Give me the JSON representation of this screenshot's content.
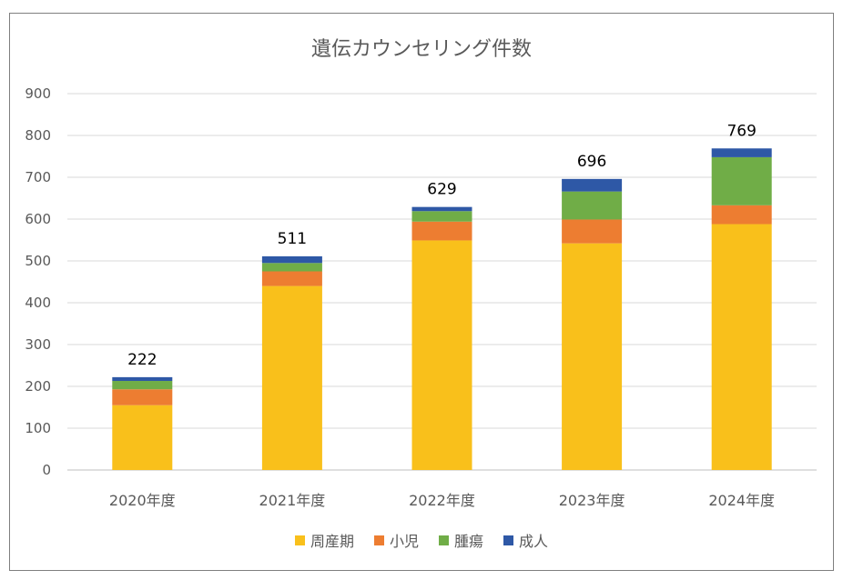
{
  "chart_data": {
    "type": "bar",
    "stacked": true,
    "title": "遺伝カウンセリング件数",
    "categories": [
      "2020年度",
      "2021年度",
      "2022年度",
      "2023年度",
      "2024年度"
    ],
    "series": [
      {
        "name": "周産期",
        "color": "#F9C01B",
        "values": [
          155,
          440,
          549,
          542,
          588
        ]
      },
      {
        "name": "小児",
        "color": "#ED7D31",
        "values": [
          38,
          35,
          45,
          57,
          45
        ]
      },
      {
        "name": "腫瘍",
        "color": "#70AD47",
        "values": [
          20,
          20,
          25,
          67,
          115
        ]
      },
      {
        "name": "成人",
        "color": "#2E58A6",
        "values": [
          9,
          16,
          10,
          30,
          21
        ]
      }
    ],
    "totals": [
      "222",
      "511",
      "629",
      "696",
      "769"
    ],
    "ylim": [
      0,
      900
    ],
    "yticks": [
      "0",
      "100",
      "200",
      "300",
      "400",
      "500",
      "600",
      "700",
      "800",
      "900"
    ],
    "grid": true,
    "legend_position": "bottom"
  }
}
